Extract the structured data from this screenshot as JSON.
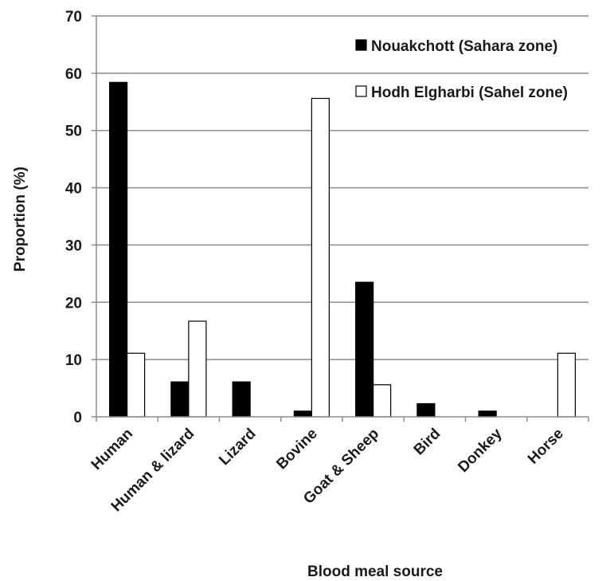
{
  "chart_data": {
    "type": "bar",
    "title": "",
    "xlabel": "Blood meal source",
    "ylabel": "Proportion (%)",
    "ylim": [
      0,
      70
    ],
    "yticks": [
      0,
      10,
      20,
      30,
      40,
      50,
      60,
      70
    ],
    "grid": true,
    "legend_position": "top-right",
    "categories": [
      "Human",
      "Human & lizard",
      "Lizard",
      "Bovine",
      "Goat & Sheep",
      "Bird",
      "Donkey",
      "Horse"
    ],
    "series": [
      {
        "name": "Nouakchott (Sahara zone)",
        "color": "#000000",
        "values": [
          58.4,
          6.1,
          6.1,
          1.0,
          23.5,
          2.3,
          1.0,
          0.0
        ]
      },
      {
        "name": "Hodh Elgharbi (Sahel zone)",
        "color": "#ffffff",
        "values": [
          11.1,
          16.7,
          0.0,
          55.6,
          5.6,
          0.0,
          0.0,
          11.1
        ]
      }
    ]
  }
}
